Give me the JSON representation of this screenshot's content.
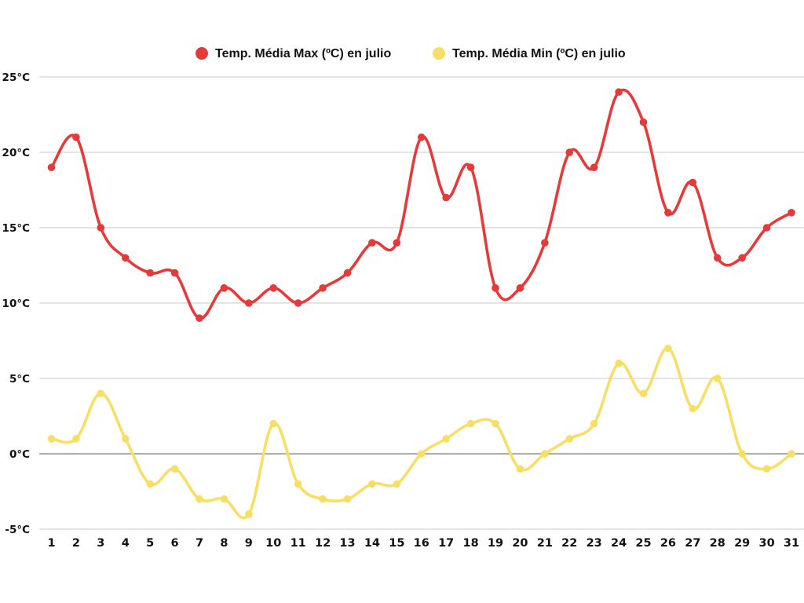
{
  "chart_data": {
    "type": "line",
    "title": "",
    "xlabel": "",
    "ylabel": "",
    "unit_suffix": "°C",
    "ylim": [
      -5,
      25
    ],
    "yticks": [
      -5,
      0,
      5,
      10,
      15,
      20,
      25
    ],
    "ytick_labels": [
      "-5°C",
      "0°C",
      "5°C",
      "10°C",
      "15°C",
      "20°C",
      "25°C"
    ],
    "grid": true,
    "legend_position": "top-center",
    "categories": [
      "1",
      "2",
      "3",
      "4",
      "5",
      "6",
      "7",
      "8",
      "9",
      "10",
      "11",
      "12",
      "13",
      "14",
      "15",
      "16",
      "17",
      "18",
      "19",
      "20",
      "21",
      "22",
      "23",
      "24",
      "25",
      "26",
      "27",
      "28",
      "29",
      "30",
      "31"
    ],
    "series": [
      {
        "name": "Temp. Média Max (ºC) en julio",
        "color": "#e63a3a",
        "values": [
          19,
          21,
          15,
          13,
          12,
          12,
          9,
          11,
          10,
          11,
          10,
          11,
          12,
          14,
          14,
          21,
          17,
          19,
          11,
          11,
          14,
          20,
          19,
          24,
          22,
          16,
          18,
          13,
          13,
          15,
          16
        ]
      },
      {
        "name": "Temp. Média Min (ºC) en julio",
        "color": "#f7df66",
        "values": [
          1,
          1,
          4,
          1,
          -2,
          -1,
          -3,
          -3,
          -4,
          2,
          -2,
          -3,
          -3,
          -2,
          -2,
          0,
          1,
          2,
          2,
          -1,
          0,
          1,
          2,
          6,
          4,
          7,
          3,
          5,
          0,
          -1,
          0
        ]
      }
    ]
  }
}
